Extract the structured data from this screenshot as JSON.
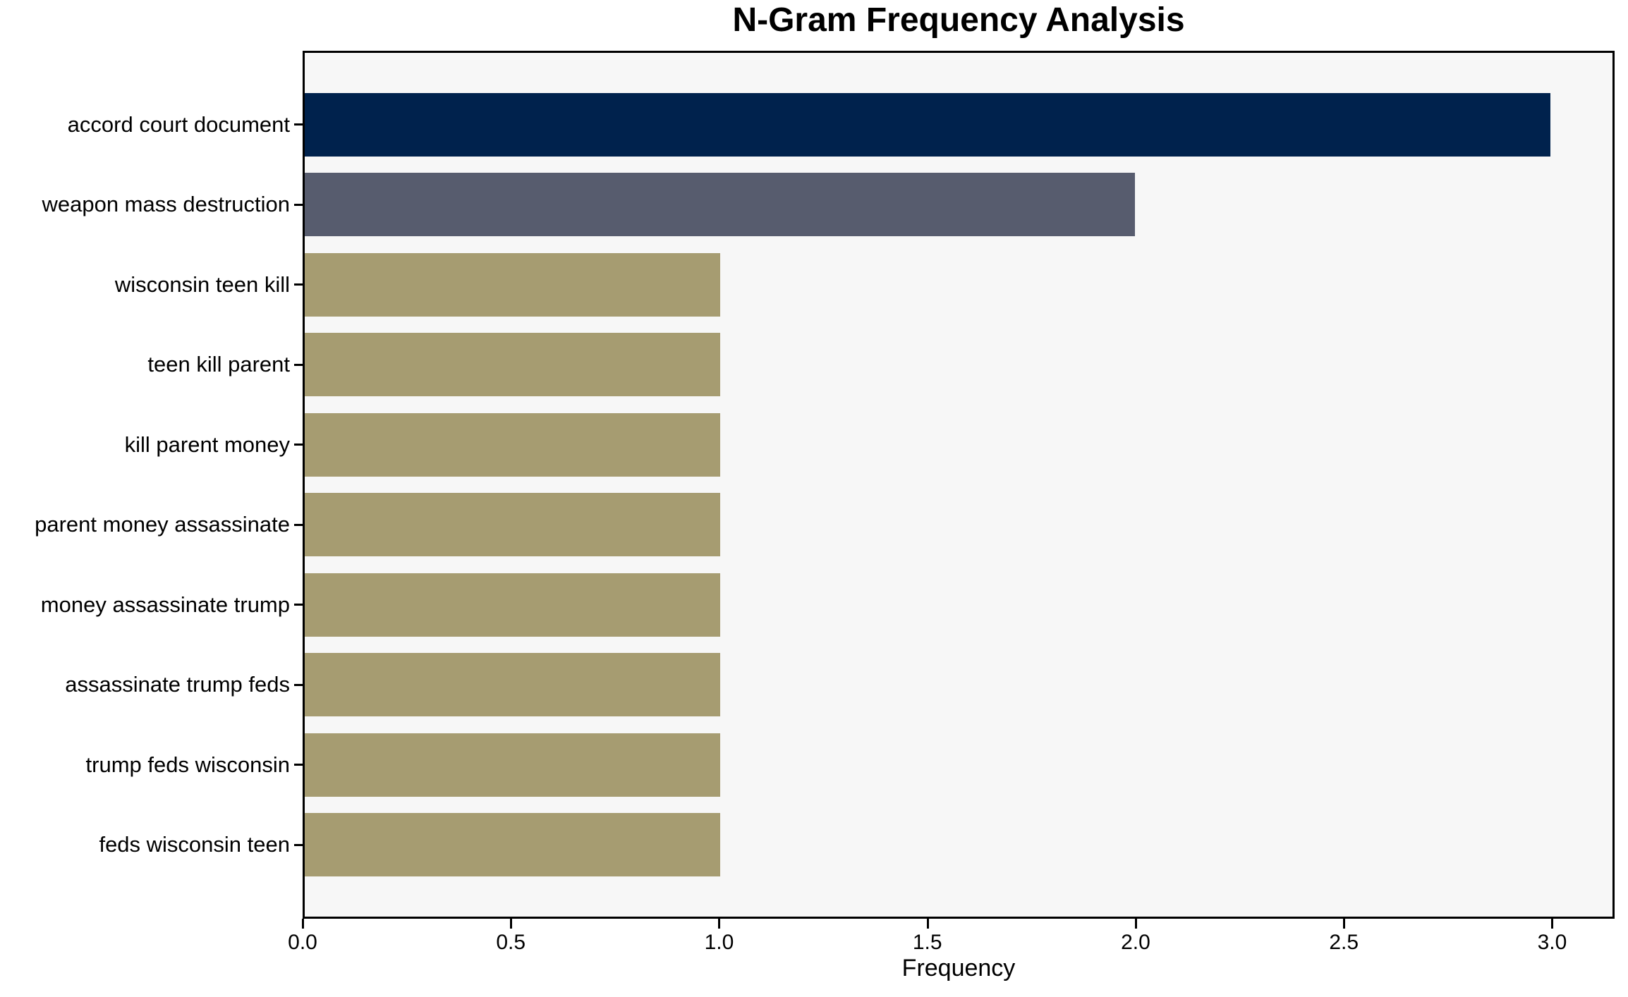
{
  "chart_data": {
    "type": "bar",
    "orientation": "horizontal",
    "title": "N-Gram Frequency Analysis",
    "xlabel": "Frequency",
    "ylabel": "",
    "categories": [
      "accord court document",
      "weapon mass destruction",
      "wisconsin teen kill",
      "teen kill parent",
      "kill parent money",
      "parent money assassinate",
      "money assassinate trump",
      "assassinate trump feds",
      "trump feds wisconsin",
      "feds wisconsin teen"
    ],
    "values": [
      3,
      2,
      1,
      1,
      1,
      1,
      1,
      1,
      1,
      1
    ],
    "bar_colors": [
      "#00224D",
      "#575C6E",
      "#A69C71",
      "#A69C71",
      "#A69C71",
      "#A69C71",
      "#A69C71",
      "#A69C71",
      "#A69C71",
      "#A69C71"
    ],
    "xtick_labels": [
      "0.0",
      "0.5",
      "1.0",
      "1.5",
      "2.0",
      "2.5",
      "3.0"
    ],
    "xtick_values": [
      0,
      0.5,
      1,
      1.5,
      2,
      2.5,
      3
    ],
    "xlim": [
      0,
      3.15
    ],
    "grid": false,
    "legend_position": "none",
    "plot_background": "#F7F7F7",
    "spine_color": "#000000",
    "text_color": "#000000"
  }
}
